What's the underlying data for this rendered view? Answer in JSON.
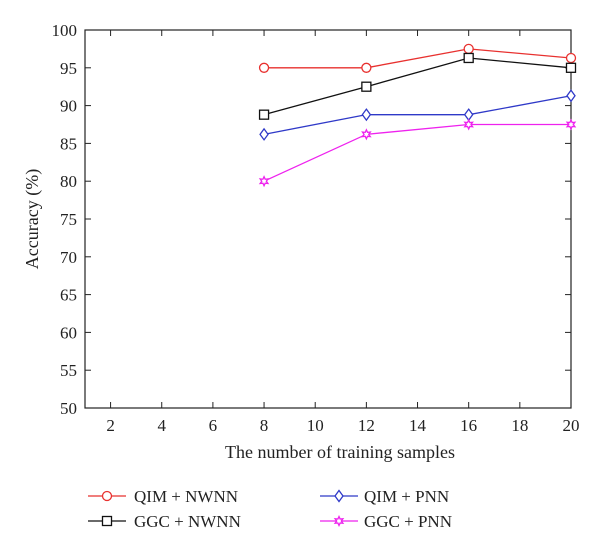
{
  "chart_data": {
    "type": "line",
    "xlabel": "The number of training samples",
    "ylabel": "Accuracy (%)",
    "xlim": [
      1,
      20
    ],
    "ylim": [
      50,
      100
    ],
    "xticks": [
      2,
      4,
      6,
      8,
      10,
      12,
      14,
      16,
      18,
      20
    ],
    "yticks": [
      50,
      55,
      60,
      65,
      70,
      75,
      80,
      85,
      90,
      95,
      100
    ],
    "grid": false,
    "legend_placement": "below",
    "x": [
      8,
      12,
      16,
      20
    ],
    "series": [
      {
        "name": "QIM + NWNN",
        "values": [
          95.0,
          95.0,
          97.5,
          96.3
        ],
        "color": "#e8312f",
        "marker": "circle"
      },
      {
        "name": "GGC + NWNN",
        "values": [
          88.8,
          92.5,
          96.3,
          95.0
        ],
        "color": "#111111",
        "marker": "square"
      },
      {
        "name": "QIM + PNN",
        "values": [
          86.2,
          88.8,
          88.8,
          91.3
        ],
        "color": "#2f39c8",
        "marker": "diamond"
      },
      {
        "name": "GGC + PNN",
        "values": [
          80.0,
          86.2,
          87.5,
          87.5
        ],
        "color": "#ee22ee",
        "marker": "hexagram"
      }
    ]
  }
}
